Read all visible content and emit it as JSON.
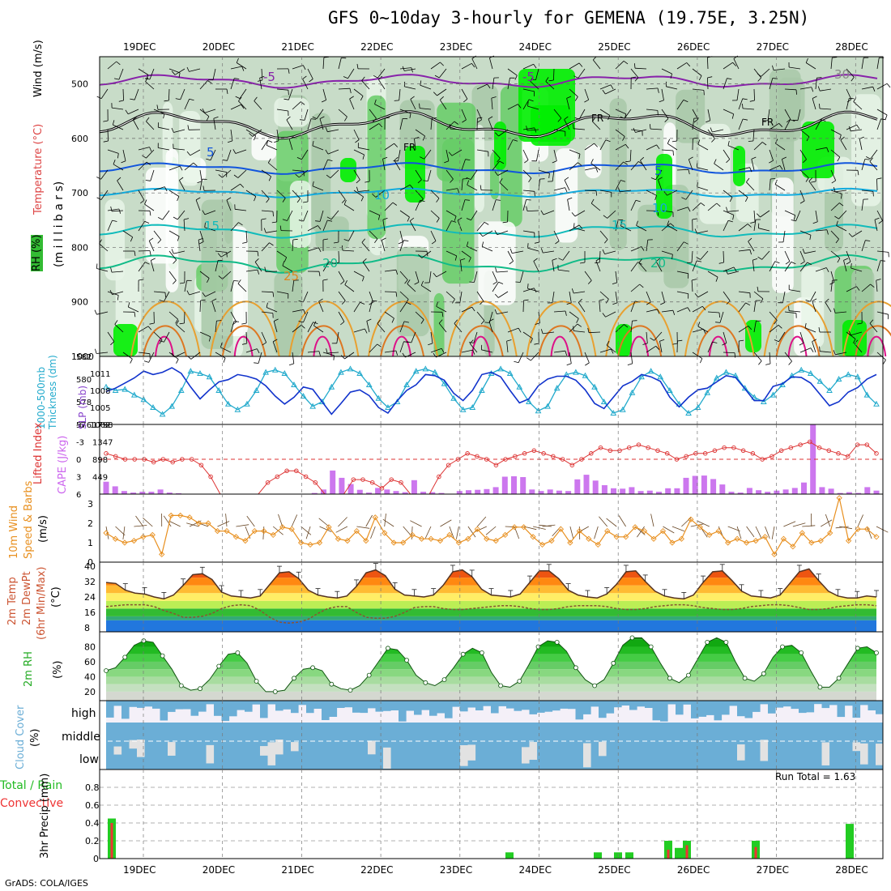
{
  "title": "GFS 0~10day 3-hourly for GEMENA (19.75E, 3.25N)",
  "credit": "GrADS: COLA/IGES",
  "dates": [
    "19DEC",
    "20DEC",
    "21DEC",
    "22DEC",
    "23DEC",
    "24DEC",
    "25DEC",
    "26DEC",
    "27DEC",
    "28DEC"
  ],
  "colors": {
    "rh_light": "#e8f4e8",
    "rh_mid": "#c8dcc8",
    "rh_dark": "#a8c8a8",
    "rh_green": "#66cc66",
    "rh_bright": "#00ee00",
    "temp_purple": "#8822aa",
    "temp_blue": "#1155dd",
    "temp_cyan": "#11aadd",
    "temp_teal": "#11bbbb",
    "temp_green": "#11bb88",
    "temp_orange": "#e8a030",
    "temp_red": "#dd1188",
    "thick": "#22aacc",
    "slp": "#1133cc",
    "li": "#dd3333",
    "cape": "#cc77ee",
    "wind10": "#e89020",
    "cloud": "#6baed6",
    "cloud_bg": "#f4f0f8",
    "precip": "#22cc22",
    "conv": "#ee3333"
  },
  "panels": {
    "upper": {
      "labels": [
        "RH (%)",
        "Temperature (°C)",
        "Wind (m/s)",
        "(m i l l i b a r s)"
      ],
      "yticks": [
        "500",
        "600",
        "700",
        "800",
        "900",
        "1000"
      ],
      "contour_labels": [
        "-5",
        "-5",
        "FR",
        "FR",
        "FR",
        "5",
        "5",
        "10",
        "10",
        "15",
        "15",
        "20",
        "20",
        "25",
        "30"
      ]
    },
    "thickness": {
      "labels": [
        "1000-500mb",
        "Thickness (dm)",
        "SLP (mb)"
      ],
      "left_ticks": [
        "582",
        "580",
        "578",
        "576"
      ],
      "right_ticks": [
        "1011",
        "1008",
        "1005",
        "1002"
      ]
    },
    "stability": {
      "labels": [
        "Lifted Index",
        "CAPE (J/kg)"
      ],
      "left_ticks": [
        "-6",
        "-3",
        "0",
        "3",
        "6"
      ],
      "right_ticks": [
        "1798",
        "1347",
        "898",
        "449"
      ]
    },
    "wind10": {
      "labels": [
        "10m Wind",
        "Speed & Barbs",
        "(m/s)"
      ],
      "yticks": [
        "3",
        "2",
        "1",
        "0"
      ]
    },
    "temp2m": {
      "labels": [
        "2m Temp",
        "2m DewPt",
        "(6hr Min/Max)",
        "(°C)"
      ],
      "yticks": [
        "40",
        "32",
        "24",
        "16",
        "8"
      ]
    },
    "rh2m": {
      "labels": [
        "2m RH",
        "(%)"
      ],
      "yticks": [
        "80",
        "60",
        "40",
        "20"
      ]
    },
    "cloud": {
      "labels": [
        "Cloud Cover",
        "(%)"
      ],
      "levels": [
        "high",
        "middle",
        "low"
      ]
    },
    "precip": {
      "labels": [
        "Total / Rain",
        "Convective",
        "3hr Precip (mm)"
      ],
      "yticks": [
        "0.8",
        "0.6",
        "0.4",
        "0.2",
        "0"
      ],
      "run_total": "Run Total = 1.63"
    }
  },
  "chart_data": {
    "type": "meteogram",
    "x_dates": [
      "19DEC",
      "20DEC",
      "21DEC",
      "22DEC",
      "23DEC",
      "24DEC",
      "25DEC",
      "26DEC",
      "27DEC",
      "28DEC"
    ],
    "thickness_dm": [
      579.3,
      579.0,
      579.1,
      578.6,
      578.2,
      577.5,
      576.9,
      577.6,
      579.0,
      580.7,
      580.5,
      580.2,
      579.0,
      577.8,
      577.3,
      577.8,
      579.0,
      580.6,
      580.8,
      580.5,
      579.5,
      578.5,
      577.6,
      578.0,
      579.3,
      580.6,
      580.9,
      580.5,
      579.5,
      578.3,
      577.5,
      578.0,
      579.5,
      580.7,
      580.9,
      580.6,
      579.6,
      578.3,
      577.3,
      577.5,
      579.0,
      580.5,
      580.9,
      580.5,
      579.3,
      578.0,
      577.2,
      577.6,
      579.2,
      580.4,
      580.6,
      580.3,
      579.3,
      578.0,
      577.0,
      577.3,
      578.8,
      580.2,
      580.7,
      580.2,
      579.0,
      577.8,
      577.0,
      577.5,
      578.8,
      580.1,
      580.6,
      580.3,
      579.2,
      578.4,
      578.0,
      578.6,
      579.5,
      580.3,
      580.8,
      580.5,
      579.8,
      579.0,
      580.0,
      580.4,
      580.2,
      578.6,
      577.8
    ],
    "slp_mb": [
      1007.8,
      1008.4,
      1009.3,
      1010.2,
      1011.4,
      1010.8,
      1011.2,
      1012.0,
      1011.0,
      1008.6,
      1006.5,
      1008.1,
      1009.5,
      1009.9,
      1010.8,
      1010.5,
      1010.0,
      1008.8,
      1007.0,
      1005.6,
      1006.8,
      1008.6,
      1008.2,
      1006.0,
      1003.8,
      1005.7,
      1007.7,
      1008.1,
      1007.1,
      1005.0,
      1004.0,
      1006.2,
      1008.0,
      1009.0,
      1010.8,
      1010.6,
      1009.8,
      1007.5,
      1006.2,
      1008.0,
      1010.8,
      1011.2,
      1010.4,
      1008.0,
      1005.8,
      1006.5,
      1008.8,
      1010.0,
      1010.5,
      1010.5,
      1009.8,
      1008.1,
      1005.7,
      1004.8,
      1006.8,
      1008.8,
      1009.6,
      1010.8,
      1010.4,
      1009.6,
      1006.8,
      1005.1,
      1006.8,
      1008.1,
      1008.4,
      1009.5,
      1010.6,
      1010.3,
      1008.3,
      1006.2,
      1006.2,
      1008.7,
      1009.2,
      1010.4,
      1010.3,
      1009.3,
      1007.3,
      1005.3,
      1006.0,
      1007.7,
      1008.5,
      1010.0,
      1010.8
    ],
    "lifted_index": [
      -1.0,
      -0.5,
      0,
      0,
      0,
      0.5,
      0,
      0.5,
      0,
      0,
      1.0,
      3.0,
      6.5,
      8,
      8,
      8,
      6,
      4,
      3,
      2,
      2,
      3,
      4,
      6,
      8,
      8,
      3.5,
      3.5,
      4,
      5,
      3.5,
      4,
      6.5,
      8,
      8,
      3,
      1,
      0,
      -1,
      -0.5,
      0,
      1,
      0,
      -0.5,
      -1,
      -1.5,
      -1,
      -0.5,
      0,
      1,
      0,
      -1,
      -2,
      -1.5,
      -1.5,
      -2,
      -2.5,
      -2,
      -1.5,
      -1,
      0,
      -0.5,
      -1,
      -1,
      -1.5,
      -2,
      -2,
      -1.5,
      -1,
      0,
      -0.5,
      -1.5,
      -2,
      -2.5,
      -3,
      -2,
      -1.5,
      -1,
      -0.5,
      -2.5,
      -2.5,
      -1
    ],
    "cape_jkg": [
      320,
      200,
      80,
      40,
      60,
      60,
      120,
      40,
      20,
      0,
      0,
      0,
      0,
      0,
      0,
      0,
      0,
      0,
      0,
      0,
      0,
      0,
      0,
      30,
      120,
      610,
      420,
      260,
      110,
      40,
      160,
      120,
      80,
      50,
      360,
      60,
      50,
      30,
      0,
      80,
      100,
      110,
      130,
      180,
      450,
      460,
      440,
      120,
      80,
      120,
      90,
      80,
      380,
      500,
      350,
      230,
      150,
      140,
      180,
      80,
      90,
      60,
      150,
      150,
      420,
      470,
      480,
      390,
      250,
      60,
      40,
      160,
      100,
      60,
      90,
      120,
      160,
      300,
      1810,
      180,
      140,
      30,
      50,
      30,
      180,
      90
    ],
    "wind10_speed_ms": [
      1.5,
      1.2,
      1.0,
      1.1,
      1.3,
      1.4,
      0.4,
      2.4,
      2.4,
      2.3,
      2.0,
      2.0,
      1.6,
      1.6,
      1.3,
      1.1,
      1.6,
      1.6,
      1.4,
      1.8,
      1.7,
      1.0,
      0.9,
      1.0,
      1.8,
      1.2,
      1.1,
      1.6,
      1.1,
      2.3,
      1.5,
      1.0,
      1.0,
      1.4,
      1.2,
      1.2,
      1.1,
      1.4,
      1.0,
      1.2,
      1.7,
      1.2,
      1.1,
      1.4,
      1.8,
      1.8,
      1.3,
      0.9,
      1.1,
      1.7,
      1.0,
      1.6,
      1.2,
      0.9,
      1.6,
      1.3,
      1.3,
      1.8,
      1.6,
      1.2,
      1.6,
      1.0,
      1.2,
      2.2,
      1.8,
      1.4,
      1.6,
      1.0,
      1.2,
      1.0,
      1.1,
      1.3,
      0.4,
      1.2,
      0.8,
      1.5,
      1.0,
      1.1,
      1.5,
      3.3,
      1.1,
      1.7,
      1.7,
      1.3
    ],
    "temp2m_c": [
      31.5,
      31.0,
      27.5,
      26.0,
      25.5,
      24.0,
      23.0,
      25.0,
      30.0,
      35.5,
      36.0,
      33.0,
      26.5,
      24.5,
      24.0,
      23.5,
      24.5,
      30.5,
      36.5,
      37.0,
      33.5,
      27.5,
      25.0,
      24.0,
      23.5,
      24.5,
      29.5,
      36.5,
      38.0,
      35.0,
      28.0,
      25.0,
      24.5,
      24.0,
      25.0,
      30.0,
      37.0,
      38.0,
      34.5,
      28.0,
      25.0,
      24.5,
      24.0,
      25.5,
      31.5,
      37.5,
      37.5,
      33.5,
      27.5,
      25.0,
      24.0,
      23.5,
      25.5,
      30.5,
      37.0,
      37.5,
      32.0,
      27.0,
      24.5,
      23.5,
      23.0,
      25.0,
      31.5,
      37.0,
      37.5,
      32.5,
      27.0,
      24.5,
      24.0,
      23.5,
      25.0,
      31.0,
      37.0,
      38.5,
      32.5,
      27.0,
      24.5,
      23.5,
      23.5,
      24.5,
      24.0
    ],
    "dewpt2m_c": [
      19,
      19.5,
      20,
      20,
      20,
      19,
      17,
      15.5,
      13.5,
      13.5,
      14,
      15.5,
      18,
      19.5,
      20,
      19.5,
      17,
      13.5,
      11,
      10.5,
      11,
      12.5,
      15.5,
      18,
      19,
      19,
      16,
      13.5,
      13,
      13,
      14,
      16,
      18.5,
      19,
      19,
      18,
      17.5,
      17.5,
      18,
      18.5,
      19,
      19.5,
      19.5,
      19,
      18,
      17.5,
      17.5,
      18,
      19,
      19.5,
      19.5,
      19.5,
      19,
      18,
      17.5,
      17.5,
      18,
      19,
      19.5,
      20,
      20,
      19.5,
      18.5,
      18,
      17.5,
      17.5,
      18,
      19,
      19.5,
      20,
      20,
      19.5,
      18.5,
      17.5,
      17.5,
      18,
      19,
      19.5,
      20,
      20,
      19.5
    ],
    "rh2m_pct": [
      48,
      52,
      66,
      82,
      88,
      86,
      68,
      50,
      28,
      22,
      24,
      36,
      54,
      70,
      72,
      58,
      34,
      20,
      20,
      22,
      38,
      50,
      52,
      48,
      30,
      24,
      22,
      28,
      42,
      60,
      78,
      76,
      62,
      42,
      32,
      28,
      36,
      52,
      70,
      78,
      72,
      46,
      28,
      26,
      34,
      56,
      80,
      88,
      86,
      74,
      52,
      36,
      28,
      36,
      58,
      82,
      92,
      92,
      80,
      58,
      38,
      32,
      42,
      64,
      86,
      92,
      86,
      60,
      38,
      34,
      44,
      66,
      80,
      82,
      72,
      48,
      26,
      26,
      38,
      58,
      78,
      80,
      72
    ]
  }
}
